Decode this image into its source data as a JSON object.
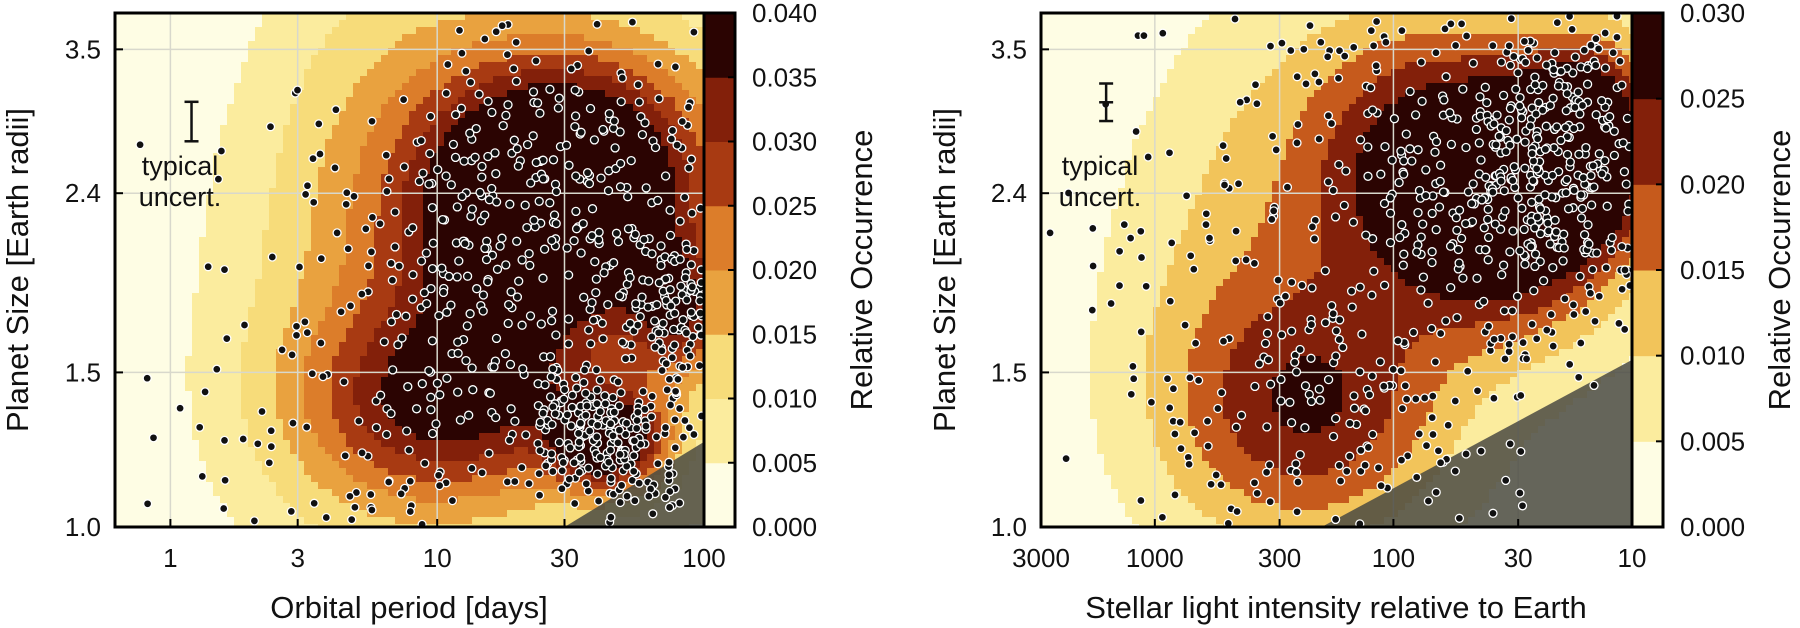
{
  "colors": {
    "scale": [
      "#fefde4",
      "#fdf6c0",
      "#fbec9e",
      "#f7dc7a",
      "#f2c45a",
      "#e9a23f",
      "#dc7d2a",
      "#c65a1c",
      "#a83a12",
      "#83200a",
      "#5a0f05",
      "#2b0402"
    ],
    "dot_fill": "#111111",
    "dot_stroke": "#ffffff",
    "grid": "#d8d8cc",
    "shade": "#4a4a42"
  },
  "chart_data": [
    {
      "type": "heatmap",
      "title": "",
      "xlabel": "Orbital period [days]",
      "ylabel": "Planet Size [Earth radii]",
      "x_scale": "log",
      "xlim": [
        0.62,
        100
      ],
      "x_ticks": [
        1,
        3,
        10,
        30,
        100
      ],
      "x_tick_labels": [
        "1",
        "3",
        "10",
        "30",
        "100"
      ],
      "y_scale": "log",
      "ylim": [
        1.0,
        3.85
      ],
      "y_ticks": [
        1.0,
        1.5,
        2.4,
        3.5
      ],
      "y_tick_labels": [
        "1.0",
        "1.5",
        "2.4",
        "3.5"
      ],
      "grid": true,
      "colorbar": {
        "label": "Relative Occurrence",
        "min": 0.0,
        "max": 0.04,
        "ticks": [
          0.0,
          0.005,
          0.01,
          0.015,
          0.02,
          0.025,
          0.03,
          0.035,
          0.04
        ],
        "tick_labels": [
          "0.000",
          "0.005",
          "0.010",
          "0.015",
          "0.020",
          "0.025",
          "0.030",
          "0.035",
          "0.040"
        ]
      },
      "density_peaks": [
        {
          "x": 40,
          "y": 2.45,
          "value": 0.038,
          "sx": 0.35,
          "sy": 0.11
        },
        {
          "x": 20,
          "y": 2.3,
          "value": 0.022,
          "sx": 0.3,
          "sy": 0.1
        },
        {
          "x": 12,
          "y": 1.38,
          "value": 0.026,
          "sx": 0.4,
          "sy": 0.08
        },
        {
          "x": 45,
          "y": 1.25,
          "value": 0.034,
          "sx": 0.15,
          "sy": 0.04
        },
        {
          "x": 6,
          "y": 1.6,
          "value": 0.01,
          "sx": 0.5,
          "sy": 0.25
        },
        {
          "x": 8,
          "y": 2.7,
          "value": 0.009,
          "sx": 0.4,
          "sy": 0.2
        },
        {
          "x": 80,
          "y": 1.75,
          "value": 0.022,
          "sx": 0.12,
          "sy": 0.05
        }
      ],
      "n_planets_plotted": 900,
      "shaded_region": "lower-right triangle from (30 days, 1.0) to (100 days, 1.25) — incompleteness",
      "annotation": {
        "text_line1": "typical",
        "text_line2": "uncert.",
        "errorbar_x": 1.2,
        "errorbar_y": [
          2.75,
          3.05
        ]
      }
    },
    {
      "type": "heatmap",
      "title": "",
      "xlabel": "Stellar light intensity relative to Earth",
      "ylabel": "Planet Size [Earth radii]",
      "x_scale": "log",
      "x_reversed": true,
      "xlim": [
        3000,
        10
      ],
      "x_ticks": [
        3000,
        1000,
        300,
        100,
        30,
        10
      ],
      "x_tick_labels": [
        "3000",
        "1000",
        "300",
        "100",
        "30",
        "10"
      ],
      "y_scale": "log",
      "ylim": [
        1.0,
        3.85
      ],
      "y_ticks": [
        1.0,
        1.5,
        2.4,
        3.5
      ],
      "y_tick_labels": [
        "1.0",
        "1.5",
        "2.4",
        "3.5"
      ],
      "grid": true,
      "colorbar": {
        "label": "Relative Occurrence",
        "min": 0.0,
        "max": 0.03,
        "ticks": [
          0.0,
          0.005,
          0.01,
          0.015,
          0.02,
          0.025,
          0.03
        ],
        "tick_labels": [
          "0.000",
          "0.005",
          "0.010",
          "0.015",
          "0.020",
          "0.025",
          "0.030"
        ]
      },
      "density_peaks": [
        {
          "x": 30,
          "y": 2.35,
          "value": 0.029,
          "sx": 0.3,
          "sy": 0.1
        },
        {
          "x": 15,
          "y": 2.75,
          "value": 0.027,
          "sx": 0.2,
          "sy": 0.08
        },
        {
          "x": 80,
          "y": 2.6,
          "value": 0.022,
          "sx": 0.35,
          "sy": 0.12
        },
        {
          "x": 200,
          "y": 1.35,
          "value": 0.019,
          "sx": 0.4,
          "sy": 0.1
        },
        {
          "x": 600,
          "y": 1.5,
          "value": 0.006,
          "sx": 0.45,
          "sy": 0.2
        },
        {
          "x": 400,
          "y": 2.5,
          "value": 0.006,
          "sx": 0.4,
          "sy": 0.2
        }
      ],
      "n_planets_plotted": 900,
      "shaded_region": "lower-right triangle from (200, 1.0) to (10, 1.55) — incompleteness",
      "annotation": {
        "text_line1": "typical",
        "text_line2": "uncert.",
        "errorbar_x": 1600,
        "errorbar_y": [
          2.9,
          3.2
        ]
      }
    }
  ]
}
